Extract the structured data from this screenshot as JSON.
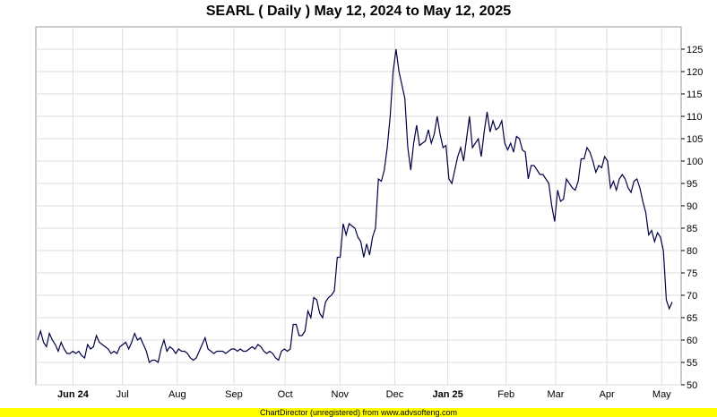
{
  "chart_data": {
    "type": "line",
    "title": "SEARL ( Daily ) May 12, 2024 to May 12, 2025",
    "xlabel": "",
    "ylabel": "",
    "ylim": [
      50,
      130
    ],
    "yticks": [
      50,
      55,
      60,
      65,
      70,
      75,
      80,
      85,
      90,
      95,
      100,
      105,
      110,
      115,
      120,
      125
    ],
    "xticks": [
      {
        "label": "Jun 24",
        "major": true,
        "date": "2024-06-03"
      },
      {
        "label": "Jul",
        "major": false,
        "date": "2024-07-01"
      },
      {
        "label": "Aug",
        "major": false,
        "date": "2024-08-01"
      },
      {
        "label": "Sep",
        "major": false,
        "date": "2024-09-02"
      },
      {
        "label": "Oct",
        "major": false,
        "date": "2024-10-01"
      },
      {
        "label": "Nov",
        "major": false,
        "date": "2024-11-01"
      },
      {
        "label": "Dec",
        "major": false,
        "date": "2024-12-02"
      },
      {
        "label": "Jan 25",
        "major": true,
        "date": "2025-01-01"
      },
      {
        "label": "Feb",
        "major": false,
        "date": "2025-02-03"
      },
      {
        "label": "Mar",
        "major": false,
        "date": "2025-03-03"
      },
      {
        "label": "Apr",
        "major": false,
        "date": "2025-04-01"
      },
      {
        "label": "May",
        "major": false,
        "date": "2025-05-02"
      }
    ],
    "grid": true,
    "line_color": "#000044",
    "series": [
      {
        "values": [
          [
            0,
            60
          ],
          [
            1,
            62
          ],
          [
            2,
            59.5
          ],
          [
            3,
            58.5
          ],
          [
            4,
            61.5
          ],
          [
            5,
            60
          ],
          [
            6,
            59
          ],
          [
            7,
            57.5
          ],
          [
            8,
            59.5
          ],
          [
            9,
            58
          ],
          [
            10,
            57
          ],
          [
            11,
            57
          ],
          [
            12,
            57.5
          ],
          [
            13,
            57
          ],
          [
            14,
            57.5
          ],
          [
            15,
            56.5
          ],
          [
            16,
            56
          ],
          [
            17,
            59
          ],
          [
            18,
            58
          ],
          [
            19,
            58.5
          ],
          [
            20,
            61
          ],
          [
            21,
            59.5
          ],
          [
            22,
            59
          ],
          [
            23,
            58.5
          ],
          [
            24,
            58
          ],
          [
            25,
            57
          ],
          [
            26,
            57.5
          ],
          [
            27,
            57
          ],
          [
            28,
            58.5
          ],
          [
            29,
            59
          ],
          [
            30,
            59.5
          ],
          [
            31,
            58
          ],
          [
            32,
            59.5
          ],
          [
            33,
            61.5
          ],
          [
            34,
            60
          ],
          [
            35,
            60.5
          ],
          [
            36,
            59
          ],
          [
            37,
            57.5
          ],
          [
            38,
            55
          ],
          [
            39,
            55.5
          ],
          [
            40,
            55.5
          ],
          [
            41,
            55
          ],
          [
            42,
            58
          ],
          [
            43,
            60
          ],
          [
            44,
            57.5
          ],
          [
            45,
            58.5
          ],
          [
            46,
            58
          ],
          [
            47,
            57
          ],
          [
            48,
            58
          ],
          [
            49,
            57.5
          ],
          [
            50,
            57.5
          ],
          [
            51,
            57
          ],
          [
            52,
            56
          ],
          [
            53,
            55.5
          ],
          [
            54,
            56
          ],
          [
            55,
            57.5
          ],
          [
            56,
            59
          ],
          [
            57,
            60.5
          ],
          [
            58,
            58
          ],
          [
            59,
            57.5
          ],
          [
            60,
            57
          ],
          [
            61,
            57.5
          ],
          [
            62,
            57.5
          ],
          [
            63,
            57.5
          ],
          [
            64,
            57
          ],
          [
            65,
            57.5
          ],
          [
            66,
            58
          ],
          [
            67,
            58
          ],
          [
            68,
            57.5
          ],
          [
            69,
            58
          ],
          [
            70,
            57.5
          ],
          [
            71,
            57.5
          ],
          [
            72,
            58
          ],
          [
            73,
            58.5
          ],
          [
            74,
            58
          ],
          [
            75,
            59
          ],
          [
            76,
            58.5
          ],
          [
            77,
            57.5
          ],
          [
            78,
            57
          ],
          [
            79,
            57.5
          ],
          [
            80,
            57
          ],
          [
            81,
            56
          ],
          [
            82,
            55.5
          ],
          [
            83,
            57.5
          ],
          [
            84,
            58
          ],
          [
            85,
            57.5
          ],
          [
            86,
            58
          ],
          [
            87,
            63.5
          ],
          [
            88,
            63.5
          ],
          [
            89,
            61
          ],
          [
            90,
            61
          ],
          [
            91,
            62
          ],
          [
            92,
            66.5
          ],
          [
            93,
            65
          ],
          [
            94,
            69.5
          ],
          [
            95,
            69
          ],
          [
            96,
            66
          ],
          [
            97,
            65
          ],
          [
            98,
            68.5
          ],
          [
            99,
            69.5
          ],
          [
            100,
            70
          ],
          [
            101,
            71
          ],
          [
            102,
            78.5
          ],
          [
            103,
            78.5
          ],
          [
            104,
            86
          ],
          [
            105,
            83.5
          ],
          [
            106,
            86
          ],
          [
            107,
            85.5
          ],
          [
            108,
            85
          ],
          [
            109,
            83
          ],
          [
            110,
            82
          ],
          [
            111,
            78.5
          ],
          [
            112,
            81.5
          ],
          [
            113,
            79
          ],
          [
            114,
            83
          ],
          [
            115,
            85
          ],
          [
            116,
            96
          ],
          [
            117,
            95.5
          ],
          [
            118,
            98
          ],
          [
            119,
            103
          ],
          [
            120,
            110
          ],
          [
            121,
            120
          ],
          [
            122,
            125
          ],
          [
            123,
            120
          ],
          [
            124,
            117
          ],
          [
            125,
            114
          ],
          [
            126,
            103
          ],
          [
            127,
            98
          ],
          [
            128,
            104
          ],
          [
            129,
            108
          ],
          [
            130,
            103.5
          ],
          [
            131,
            104
          ],
          [
            132,
            104.5
          ],
          [
            133,
            107
          ],
          [
            134,
            104
          ],
          [
            135,
            106
          ],
          [
            136,
            110
          ],
          [
            137,
            106
          ],
          [
            138,
            103
          ],
          [
            139,
            103.5
          ],
          [
            140,
            96
          ],
          [
            141,
            95
          ],
          [
            142,
            98
          ],
          [
            143,
            101
          ],
          [
            144,
            103
          ],
          [
            145,
            100
          ],
          [
            146,
            105
          ],
          [
            147,
            110
          ],
          [
            148,
            103
          ],
          [
            149,
            104
          ],
          [
            150,
            105
          ],
          [
            151,
            101
          ],
          [
            152,
            106.5
          ],
          [
            153,
            111
          ],
          [
            154,
            106.5
          ],
          [
            155,
            109
          ],
          [
            156,
            107
          ],
          [
            157,
            107.5
          ],
          [
            158,
            109
          ],
          [
            159,
            104
          ],
          [
            160,
            102.5
          ],
          [
            161,
            104
          ],
          [
            162,
            102
          ],
          [
            163,
            105.5
          ],
          [
            164,
            105
          ],
          [
            165,
            102.5
          ],
          [
            166,
            102
          ],
          [
            167,
            96
          ],
          [
            168,
            99
          ],
          [
            169,
            99
          ],
          [
            170,
            98
          ],
          [
            171,
            97
          ],
          [
            172,
            97
          ],
          [
            173,
            96
          ],
          [
            174,
            95
          ],
          [
            175,
            90
          ],
          [
            176,
            86.5
          ],
          [
            177,
            93.5
          ],
          [
            178,
            91
          ],
          [
            179,
            91.5
          ],
          [
            180,
            96
          ],
          [
            181,
            95
          ],
          [
            182,
            94
          ],
          [
            183,
            93.5
          ],
          [
            184,
            95.5
          ],
          [
            185,
            100.5
          ],
          [
            186,
            100.5
          ],
          [
            187,
            103
          ],
          [
            188,
            102
          ],
          [
            189,
            100
          ],
          [
            190,
            97.5
          ],
          [
            191,
            99
          ],
          [
            192,
            98.5
          ],
          [
            193,
            101
          ],
          [
            194,
            100
          ],
          [
            195,
            94
          ],
          [
            196,
            95.5
          ],
          [
            197,
            93.5
          ],
          [
            198,
            96
          ],
          [
            199,
            97
          ],
          [
            200,
            96
          ],
          [
            201,
            94
          ],
          [
            202,
            93
          ],
          [
            203,
            95.5
          ],
          [
            204,
            96
          ],
          [
            205,
            94
          ],
          [
            206,
            91
          ],
          [
            207,
            88.5
          ],
          [
            208,
            83.5
          ],
          [
            209,
            84.5
          ],
          [
            210,
            82
          ],
          [
            211,
            84
          ],
          [
            212,
            83
          ],
          [
            213,
            80
          ],
          [
            214,
            69
          ],
          [
            215,
            67
          ],
          [
            216,
            68.5
          ]
        ]
      }
    ]
  },
  "footer_text": "ChartDirector (unregistered) from www.advsofteng.com",
  "colors": {
    "line": "#000044",
    "grid": "#dddddd",
    "footer_bg": "#ffff00",
    "plot_border": "#999999"
  }
}
